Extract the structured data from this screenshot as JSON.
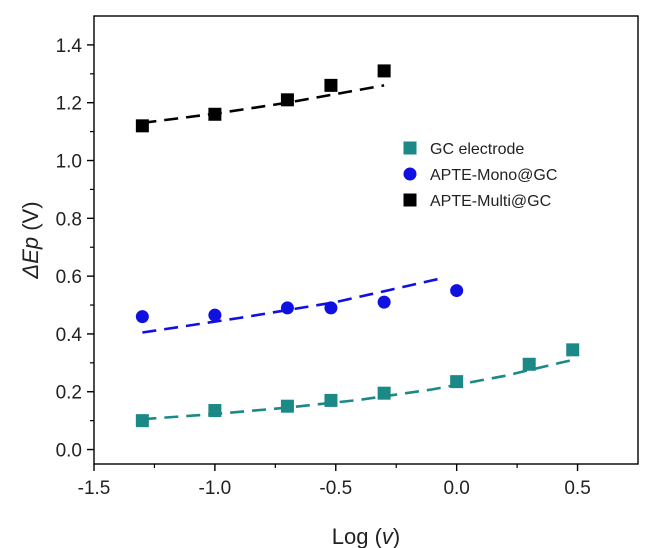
{
  "chart_data": {
    "type": "scatter",
    "xlabel_prefix": "Log (",
    "xlabel_var": "v",
    "xlabel_suffix": ")",
    "ylabel_var": "ΔEp",
    "ylabel_unit": " (V)",
    "xlim": [
      -1.5,
      0.75
    ],
    "ylim": [
      -0.05,
      1.5
    ],
    "x_ticks": [
      -1.5,
      -1.0,
      -0.5,
      0.0,
      0.5
    ],
    "x_tick_labels": [
      "-1.5",
      "-1.0",
      "-0.5",
      "0.0",
      "0.5"
    ],
    "y_ticks": [
      0.0,
      0.2,
      0.4,
      0.6,
      0.8,
      1.0,
      1.2,
      1.4
    ],
    "y_tick_labels": [
      "0.0",
      "0.2",
      "0.4",
      "0.6",
      "0.8",
      "1.0",
      "1.2",
      "1.4"
    ],
    "grid": false,
    "legend_position": "right",
    "series": [
      {
        "name": "GC electrode",
        "marker": "square",
        "color": "#1b8a86",
        "x": [
          -1.3,
          -1.0,
          -0.7,
          -0.52,
          -0.3,
          0.0,
          0.3,
          0.48
        ],
        "y": [
          0.1,
          0.135,
          0.15,
          0.17,
          0.195,
          0.235,
          0.295,
          0.345
        ],
        "fit": {
          "style": "dashed",
          "x": [
            -1.3,
            -1.0,
            -0.7,
            -0.4,
            -0.1,
            0.2,
            0.48
          ],
          "y": [
            0.105,
            0.123,
            0.145,
            0.172,
            0.208,
            0.255,
            0.31
          ]
        }
      },
      {
        "name": "APTE-Mono@GC",
        "marker": "circle",
        "color": "#1010e0",
        "x": [
          -1.3,
          -1.0,
          -0.7,
          -0.52,
          -0.3,
          0.0
        ],
        "y": [
          0.46,
          0.465,
          0.49,
          0.49,
          0.51,
          0.55
        ],
        "fit": {
          "style": "dashed",
          "x": [
            -1.3,
            -0.9,
            -0.5,
            -0.05
          ],
          "y": [
            0.405,
            0.455,
            0.51,
            0.595
          ]
        }
      },
      {
        "name": "APTE-Multi@GC",
        "marker": "square",
        "color": "#000000",
        "x": [
          -1.3,
          -1.0,
          -0.7,
          -0.52,
          -0.3
        ],
        "y": [
          1.12,
          1.16,
          1.21,
          1.26,
          1.31
        ],
        "fit": {
          "style": "dashed",
          "x": [
            -1.3,
            -1.0,
            -0.7,
            -0.3
          ],
          "y": [
            1.13,
            1.162,
            1.2,
            1.26
          ]
        }
      }
    ]
  }
}
